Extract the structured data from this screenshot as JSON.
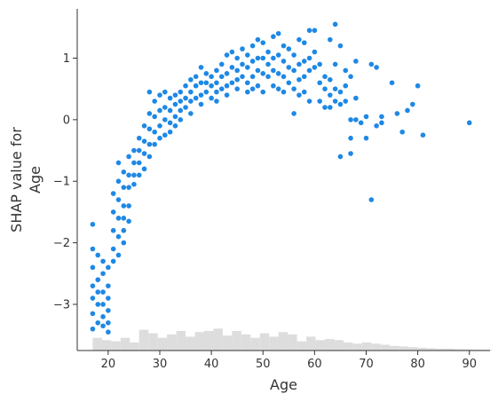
{
  "chart_data": {
    "type": "scatter",
    "xlabel": "Age",
    "ylabel_lines": [
      "SHAP value for",
      "Age"
    ],
    "xlim": [
      14,
      94
    ],
    "ylim": [
      -3.75,
      1.8
    ],
    "x_ticks": [
      20,
      30,
      40,
      50,
      60,
      70,
      80,
      90
    ],
    "y_ticks": [
      1,
      0,
      -1,
      -2,
      -3
    ],
    "y_tick_labels": [
      "1",
      "0",
      "−1",
      "−2",
      "−3"
    ],
    "grid": false,
    "point_color": "#1e88e5",
    "histogram_color": "#dddddd",
    "histogram": {
      "bin_width": 1.8,
      "x_start": 17,
      "relative_heights": [
        0.55,
        0.45,
        0.4,
        0.55,
        0.35,
        0.9,
        0.75,
        0.55,
        0.7,
        0.85,
        0.6,
        0.8,
        0.85,
        0.95,
        0.65,
        0.85,
        0.7,
        0.55,
        0.75,
        0.6,
        0.8,
        0.7,
        0.4,
        0.6,
        0.45,
        0.5,
        0.45,
        0.35,
        0.3,
        0.35,
        0.3,
        0.25,
        0.2,
        0.18,
        0.15,
        0.12,
        0.1,
        0.08,
        0.08,
        0.06,
        0.05,
        0.04,
        0.04,
        0.03,
        0.03,
        0.02,
        0.02,
        0.02,
        0.02,
        0.01,
        0.01,
        0.01,
        0.01,
        0.01,
        0.01,
        0.01,
        0.01,
        0.01,
        0.01,
        0.01,
        0.01,
        0.01,
        0.01,
        0.01,
        0.01,
        0.01,
        0.01,
        0.01,
        0.01,
        0.01,
        0.01,
        0.01,
        0.01,
        0.01,
        0.01,
        0.01,
        0.01,
        0.01,
        0.01,
        0.01,
        0.01
      ]
    },
    "series": [
      {
        "points": [
          [
            17,
            -1.7
          ],
          [
            17,
            -2.1
          ],
          [
            17,
            -2.4
          ],
          [
            17,
            -2.7
          ],
          [
            17,
            -2.9
          ],
          [
            17,
            -3.15
          ],
          [
            17,
            -3.4
          ],
          [
            18,
            -2.2
          ],
          [
            18,
            -2.6
          ],
          [
            18,
            -2.8
          ],
          [
            18,
            -3.0
          ],
          [
            18,
            -3.3
          ],
          [
            19,
            -2.3
          ],
          [
            19,
            -2.5
          ],
          [
            19,
            -2.8
          ],
          [
            19,
            -3.0
          ],
          [
            19,
            -3.2
          ],
          [
            19,
            -3.35
          ],
          [
            20,
            -2.4
          ],
          [
            20,
            -2.7
          ],
          [
            20,
            -2.9
          ],
          [
            20,
            -3.1
          ],
          [
            20,
            -3.3
          ],
          [
            20,
            -3.45
          ],
          [
            21,
            -1.2
          ],
          [
            21,
            -1.5
          ],
          [
            21,
            -1.8
          ],
          [
            21,
            -2.1
          ],
          [
            21,
            -2.3
          ],
          [
            22,
            -0.7
          ],
          [
            22,
            -1.0
          ],
          [
            22,
            -1.3
          ],
          [
            22,
            -1.6
          ],
          [
            22,
            -1.9
          ],
          [
            22,
            -2.2
          ],
          [
            23,
            -0.85
          ],
          [
            23,
            -1.1
          ],
          [
            23,
            -1.4
          ],
          [
            23,
            -1.6
          ],
          [
            23,
            -1.8
          ],
          [
            23,
            -2.0
          ],
          [
            24,
            -0.6
          ],
          [
            24,
            -0.9
          ],
          [
            24,
            -1.1
          ],
          [
            24,
            -1.4
          ],
          [
            24,
            -1.65
          ],
          [
            25,
            -0.5
          ],
          [
            25,
            -0.7
          ],
          [
            25,
            -0.9
          ],
          [
            25,
            -1.05
          ],
          [
            26,
            -0.3
          ],
          [
            26,
            -0.5
          ],
          [
            26,
            -0.7
          ],
          [
            26,
            -0.9
          ],
          [
            27,
            -0.1
          ],
          [
            27,
            -0.35
          ],
          [
            27,
            -0.55
          ],
          [
            27,
            -0.8
          ],
          [
            28,
            0.45
          ],
          [
            28,
            0.1
          ],
          [
            28,
            -0.15
          ],
          [
            28,
            -0.4
          ],
          [
            28,
            -0.6
          ],
          [
            29,
            0.3
          ],
          [
            29,
            0.05
          ],
          [
            29,
            -0.2
          ],
          [
            29,
            -0.4
          ],
          [
            30,
            0.4
          ],
          [
            30,
            0.15
          ],
          [
            30,
            -0.1
          ],
          [
            30,
            -0.3
          ],
          [
            31,
            0.45
          ],
          [
            31,
            0.2
          ],
          [
            31,
            0.0
          ],
          [
            31,
            -0.25
          ],
          [
            32,
            0.35
          ],
          [
            32,
            0.15
          ],
          [
            32,
            -0.05
          ],
          [
            32,
            -0.2
          ],
          [
            33,
            0.4
          ],
          [
            33,
            0.25
          ],
          [
            33,
            0.05
          ],
          [
            33,
            -0.1
          ],
          [
            34,
            0.45
          ],
          [
            34,
            0.3
          ],
          [
            34,
            0.15
          ],
          [
            34,
            0.0
          ],
          [
            35,
            0.55
          ],
          [
            35,
            0.35
          ],
          [
            35,
            0.2
          ],
          [
            36,
            0.65
          ],
          [
            36,
            0.45
          ],
          [
            36,
            0.3
          ],
          [
            36,
            0.1
          ],
          [
            37,
            0.7
          ],
          [
            37,
            0.55
          ],
          [
            37,
            0.35
          ],
          [
            38,
            0.85
          ],
          [
            38,
            0.6
          ],
          [
            38,
            0.4
          ],
          [
            38,
            0.25
          ],
          [
            39,
            0.75
          ],
          [
            39,
            0.6
          ],
          [
            39,
            0.45
          ],
          [
            40,
            0.7
          ],
          [
            40,
            0.55
          ],
          [
            40,
            0.35
          ],
          [
            41,
            0.8
          ],
          [
            41,
            0.6
          ],
          [
            41,
            0.45
          ],
          [
            41,
            0.3
          ],
          [
            42,
            0.9
          ],
          [
            42,
            0.7
          ],
          [
            42,
            0.5
          ],
          [
            43,
            1.05
          ],
          [
            43,
            0.75
          ],
          [
            43,
            0.55
          ],
          [
            43,
            0.4
          ],
          [
            44,
            1.1
          ],
          [
            44,
            0.85
          ],
          [
            44,
            0.6
          ],
          [
            45,
            1.0
          ],
          [
            45,
            0.8
          ],
          [
            45,
            0.65
          ],
          [
            45,
            0.5
          ],
          [
            46,
            1.15
          ],
          [
            46,
            0.9
          ],
          [
            46,
            0.7
          ],
          [
            47,
            1.05
          ],
          [
            47,
            0.85
          ],
          [
            47,
            0.6
          ],
          [
            47,
            0.45
          ],
          [
            48,
            1.2
          ],
          [
            48,
            0.95
          ],
          [
            48,
            0.7
          ],
          [
            48,
            0.5
          ],
          [
            49,
            1.3
          ],
          [
            49,
            1.0
          ],
          [
            49,
            0.8
          ],
          [
            49,
            0.55
          ],
          [
            50,
            1.25
          ],
          [
            50,
            1.0
          ],
          [
            50,
            0.75
          ],
          [
            50,
            0.45
          ],
          [
            51,
            1.1
          ],
          [
            51,
            0.9
          ],
          [
            51,
            0.7
          ],
          [
            52,
            1.35
          ],
          [
            52,
            1.0
          ],
          [
            52,
            0.8
          ],
          [
            52,
            0.55
          ],
          [
            53,
            1.4
          ],
          [
            53,
            1.05
          ],
          [
            53,
            0.75
          ],
          [
            53,
            0.5
          ],
          [
            54,
            1.2
          ],
          [
            54,
            0.95
          ],
          [
            54,
            0.7
          ],
          [
            54,
            0.45
          ],
          [
            55,
            1.15
          ],
          [
            55,
            0.85
          ],
          [
            55,
            0.6
          ],
          [
            56,
            1.05
          ],
          [
            56,
            0.8
          ],
          [
            56,
            0.5
          ],
          [
            56,
            0.1
          ],
          [
            57,
            1.3
          ],
          [
            57,
            0.9
          ],
          [
            57,
            0.65
          ],
          [
            57,
            0.4
          ],
          [
            58,
            1.25
          ],
          [
            58,
            0.95
          ],
          [
            58,
            0.7
          ],
          [
            58,
            0.45
          ],
          [
            59,
            1.45
          ],
          [
            59,
            1.0
          ],
          [
            59,
            0.8
          ],
          [
            59,
            0.3
          ],
          [
            60,
            1.45
          ],
          [
            60,
            1.1
          ],
          [
            60,
            0.85
          ],
          [
            61,
            0.9
          ],
          [
            61,
            0.6
          ],
          [
            61,
            0.3
          ],
          [
            62,
            0.7
          ],
          [
            62,
            0.5
          ],
          [
            62,
            0.2
          ],
          [
            63,
            1.3
          ],
          [
            63,
            0.65
          ],
          [
            63,
            0.4
          ],
          [
            63,
            0.2
          ],
          [
            64,
            1.55
          ],
          [
            64,
            0.9
          ],
          [
            64,
            0.5
          ],
          [
            64,
            0.3
          ],
          [
            65,
            1.2
          ],
          [
            65,
            0.45
          ],
          [
            65,
            0.25
          ],
          [
            65,
            -0.6
          ],
          [
            66,
            0.8
          ],
          [
            66,
            0.55
          ],
          [
            66,
            0.3
          ],
          [
            67,
            0.7
          ],
          [
            67,
            0.0
          ],
          [
            67,
            -0.3
          ],
          [
            67,
            -0.55
          ],
          [
            68,
            0.95
          ],
          [
            68,
            0.35
          ],
          [
            68,
            0.0
          ],
          [
            69,
            -0.05
          ],
          [
            70,
            0.05
          ],
          [
            70,
            -0.3
          ],
          [
            71,
            0.9
          ],
          [
            71,
            -1.3
          ],
          [
            72,
            0.85
          ],
          [
            72,
            -0.1
          ],
          [
            73,
            -0.05
          ],
          [
            73,
            0.05
          ],
          [
            75,
            0.6
          ],
          [
            76,
            0.1
          ],
          [
            77,
            -0.2
          ],
          [
            78,
            0.15
          ],
          [
            79,
            0.25
          ],
          [
            80,
            0.55
          ],
          [
            81,
            -0.25
          ],
          [
            90,
            -0.05
          ]
        ]
      }
    ]
  }
}
